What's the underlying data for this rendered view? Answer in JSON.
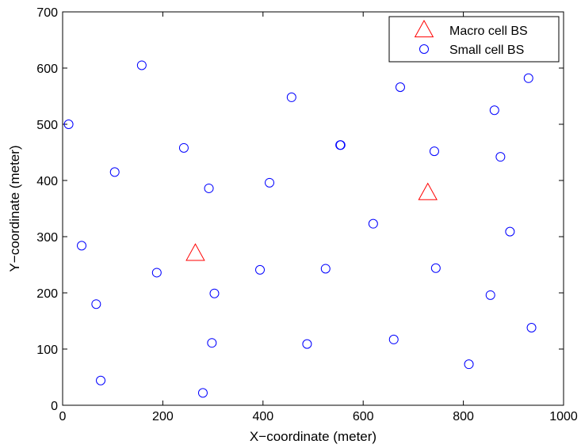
{
  "chart_data": {
    "type": "scatter",
    "title": "",
    "xlabel": "X−coordinate (meter)",
    "ylabel": "Y−coordinate (meter)",
    "xlim": [
      0,
      1000
    ],
    "ylim": [
      0,
      700
    ],
    "xticks": [
      0,
      200,
      400,
      600,
      800,
      1000
    ],
    "yticks": [
      0,
      100,
      200,
      300,
      400,
      500,
      600,
      700
    ],
    "grid": false,
    "legend_position": "top-right",
    "series": [
      {
        "name": "Macro cell BS",
        "marker": "triangle",
        "color": "#ff0000",
        "points": [
          [
            265,
            270
          ],
          [
            729,
            378
          ]
        ]
      },
      {
        "name": "Small cell BS",
        "marker": "circle",
        "color": "#0000ff",
        "points": [
          [
            12,
            500
          ],
          [
            158,
            605
          ],
          [
            104,
            415
          ],
          [
            38,
            284
          ],
          [
            67,
            180
          ],
          [
            76,
            44
          ],
          [
            242,
            458
          ],
          [
            292,
            386
          ],
          [
            188,
            236
          ],
          [
            303,
            199
          ],
          [
            298,
            111
          ],
          [
            280,
            22
          ],
          [
            413,
            396
          ],
          [
            457,
            548
          ],
          [
            394,
            241
          ],
          [
            488,
            109
          ],
          [
            525,
            243
          ],
          [
            554,
            463
          ],
          [
            555,
            463
          ],
          [
            620,
            323
          ],
          [
            661,
            117
          ],
          [
            674,
            566
          ],
          [
            742,
            452
          ],
          [
            745,
            244
          ],
          [
            811,
            73
          ],
          [
            862,
            525
          ],
          [
            874,
            442
          ],
          [
            893,
            309
          ],
          [
            854,
            196
          ],
          [
            930,
            582
          ],
          [
            936,
            138
          ]
        ]
      }
    ]
  }
}
